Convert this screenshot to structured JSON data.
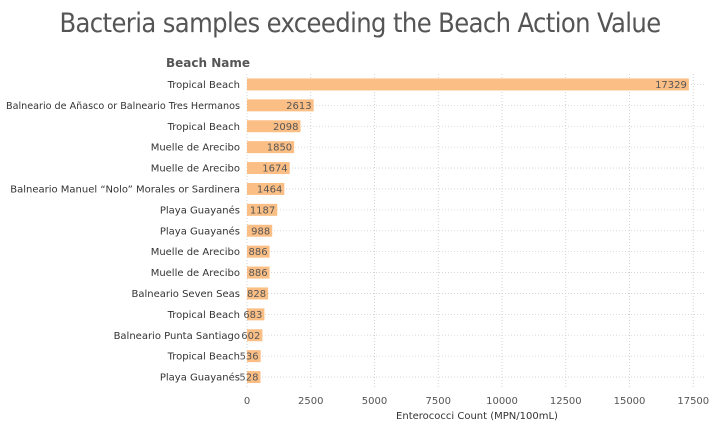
{
  "chart_data": {
    "type": "bar",
    "orientation": "horizontal",
    "title": "Bacteria samples exceeding the Beach Action Value",
    "ylabel": "Beach Name",
    "xlabel": "Enterococci Count (MPN/100mL)",
    "categories": [
      "Tropical Beach",
      "Balneario de Añasco or Balneario Tres Hermanos",
      "Tropical Beach",
      "Muelle de Arecibo",
      "Muelle de Arecibo",
      "Balneario Manuel “Nolo” Morales or Sardinera",
      "Playa Guayanés",
      "Playa Guayanés",
      "Muelle de Arecibo",
      "Muelle de Arecibo",
      "Balneario Seven Seas",
      "Tropical Beach",
      "Balneario Punta Santiago",
      "Tropical Beach",
      "Playa Guayanés"
    ],
    "values": [
      17329,
      2613,
      2098,
      1850,
      1674,
      1464,
      1187,
      988,
      886,
      886,
      828,
      683,
      602,
      536,
      528
    ],
    "data_labels": [
      "17329",
      "2613",
      "2098",
      "1850",
      "1674",
      "1464",
      "1187",
      "988",
      "886",
      "886",
      "828",
      "683",
      "602",
      "536",
      "528"
    ],
    "xlim": [
      0,
      18000
    ],
    "x_ticks": [
      0,
      2500,
      5000,
      7500,
      10000,
      12500,
      15000,
      17500
    ],
    "x_tick_labels": [
      "0",
      "2500",
      "5000",
      "7500",
      "10000",
      "12500",
      "15000",
      "17500"
    ],
    "grid": true,
    "bar_color": "#fbbf86"
  }
}
